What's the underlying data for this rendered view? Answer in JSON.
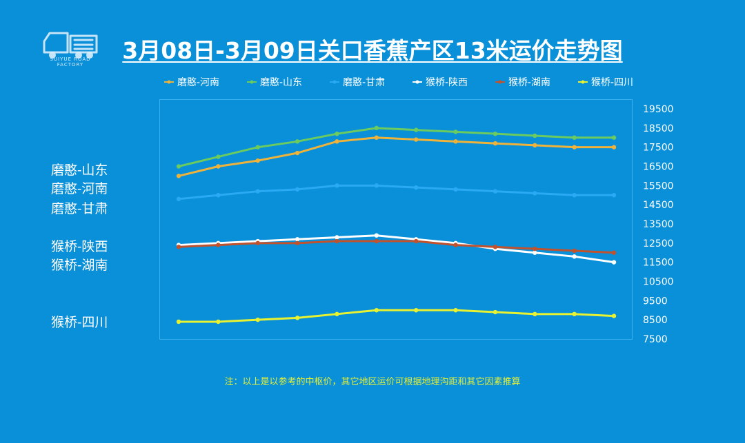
{
  "title": "3月08日-3月09日关口香蕉产区13米运价走势图",
  "logo": {
    "text": "SUIYUE ROAD FACTORY",
    "icon": "truck-logo-icon"
  },
  "side_labels": [
    "磨憨-山东",
    "磨憨-河南",
    "磨憨-甘肃",
    "猴桥-陕西",
    "猴桥-湖南",
    "猴桥-四川"
  ],
  "footnote": "注：以上是以参考的中枢价，其它地区运价可根据地理沟距和其它因素推算",
  "chart_data": {
    "type": "line",
    "title": "3月08日-3月09日关口香蕉产区13米运价走势图",
    "x": [
      "1",
      "2",
      "3",
      "4",
      "5",
      "6",
      "7",
      "8",
      "9",
      "10",
      "11",
      "12"
    ],
    "xlabel": "",
    "ylabel": "",
    "ylim": [
      7500,
      19500
    ],
    "yticks": [
      19500,
      18500,
      17500,
      16500,
      15500,
      14500,
      13500,
      12500,
      11500,
      10500,
      9500,
      8500,
      7500
    ],
    "y_axis_side": "right",
    "grid": false,
    "legend_position": "top",
    "series": [
      {
        "name": "磨憨-河南",
        "color": "#f0b33a",
        "values": [
          16000,
          16500,
          16800,
          17200,
          17800,
          18000,
          17900,
          17800,
          17700,
          17600,
          17500,
          17500
        ]
      },
      {
        "name": "磨憨-山东",
        "color": "#6ccb5f",
        "values": [
          16500,
          17000,
          17500,
          17800,
          18200,
          18500,
          18400,
          18300,
          18200,
          18100,
          18000,
          18000
        ]
      },
      {
        "name": "磨憨-甘肃",
        "color": "#2aaaf2",
        "values": [
          14800,
          15000,
          15200,
          15300,
          15500,
          15500,
          15400,
          15300,
          15200,
          15100,
          15000,
          15000
        ]
      },
      {
        "name": "猴桥-陕西",
        "color": "#ffffff",
        "values": [
          12400,
          12500,
          12600,
          12700,
          12800,
          12900,
          12700,
          12500,
          12200,
          12000,
          11800,
          11500
        ]
      },
      {
        "name": "猴桥-湖南",
        "color": "#c0522d",
        "values": [
          12300,
          12400,
          12500,
          12500,
          12600,
          12600,
          12600,
          12400,
          12300,
          12200,
          12100,
          12000
        ]
      },
      {
        "name": "猴桥-四川",
        "color": "#e8f230",
        "values": [
          8400,
          8400,
          8500,
          8600,
          8800,
          9000,
          9000,
          9000,
          8900,
          8800,
          8800,
          8700
        ]
      }
    ]
  }
}
